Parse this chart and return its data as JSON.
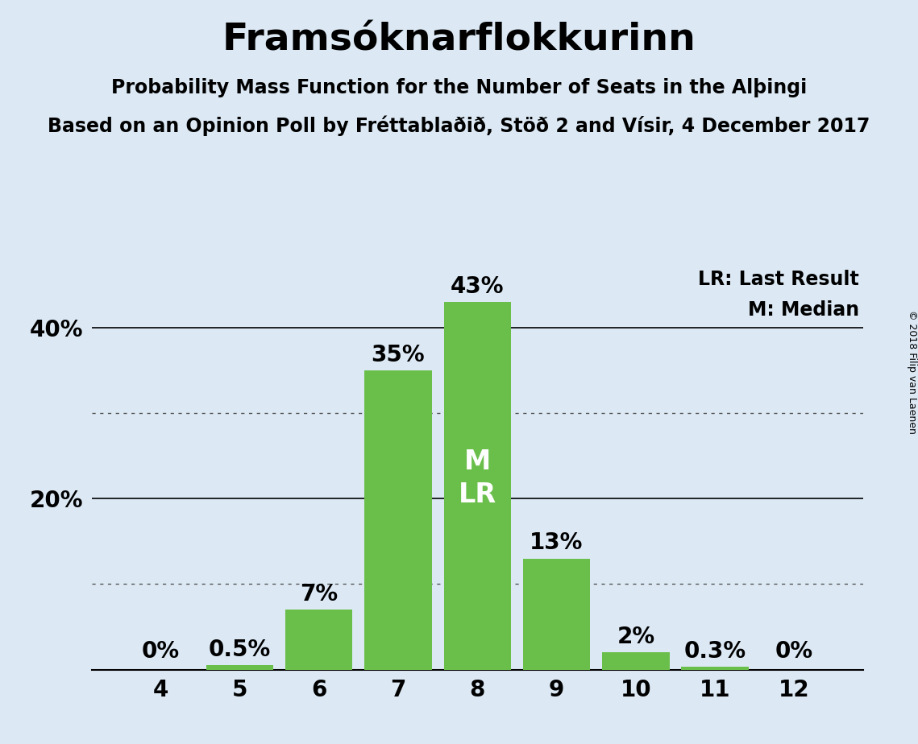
{
  "title": "Framsóknarflokkurinn",
  "subtitle1": "Probability Mass Function for the Number of Seats in the Alþingi",
  "subtitle2": "Based on an Opinion Poll by Fréttablaðið, Stöð 2 and Vísir, 4 December 2017",
  "copyright": "© 2018 Filip van Laenen",
  "categories": [
    4,
    5,
    6,
    7,
    8,
    9,
    10,
    11,
    12
  ],
  "values": [
    0.0,
    0.5,
    7.0,
    35.0,
    43.0,
    13.0,
    2.0,
    0.3,
    0.0
  ],
  "labels": [
    "0%",
    "0.5%",
    "7%",
    "35%",
    "43%",
    "13%",
    "2%",
    "0.3%",
    "0%"
  ],
  "bar_color": "#6abf4b",
  "background_color": "#dce9f5",
  "median_seat": 8,
  "last_result_seat": 8,
  "median_label": "M",
  "last_result_label": "LR",
  "yticks": [
    0,
    20,
    40
  ],
  "ytick_labels": [
    "",
    "20%",
    "40%"
  ],
  "ylim": [
    0,
    47
  ],
  "dotted_lines": [
    10,
    30
  ],
  "solid_lines": [
    20,
    40
  ],
  "legend_line1": "LR: Last Result",
  "legend_line2": "M: Median",
  "title_fontsize": 34,
  "subtitle_fontsize": 17,
  "axis_fontsize": 20,
  "legend_fontsize": 17,
  "bar_label_fontsize": 20,
  "inner_label_fontsize": 24
}
